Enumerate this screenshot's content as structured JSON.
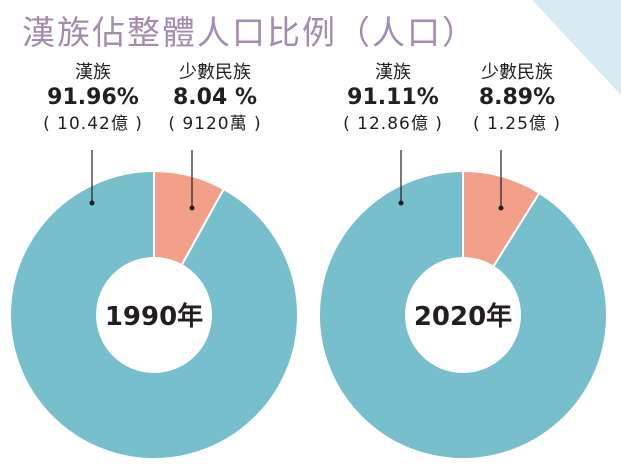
{
  "title": "漢族佔整體人口比例（人口）",
  "colors": {
    "title": "#a48bb2",
    "han": "#77bfcc",
    "minority": "#f2a08a",
    "background_corner": "#d9ebf2",
    "center": "#ffffff"
  },
  "chart_data": [
    {
      "type": "pie",
      "year_label": "1990年",
      "slices": [
        {
          "name": "漢族",
          "percent_label": "91.96%",
          "population_label": "( 10.42億 )",
          "value": 91.96
        },
        {
          "name": "少數民族",
          "percent_label": "8.04 %",
          "population_label": "( 9120萬 )",
          "value": 8.04
        }
      ]
    },
    {
      "type": "pie",
      "year_label": "2020年",
      "slices": [
        {
          "name": "漢族",
          "percent_label": "91.11%",
          "population_label": "( 12.86億 )",
          "value": 91.11
        },
        {
          "name": "少數民族",
          "percent_label": "8.89%",
          "population_label": "( 1.25億 )",
          "value": 8.89
        }
      ]
    }
  ]
}
